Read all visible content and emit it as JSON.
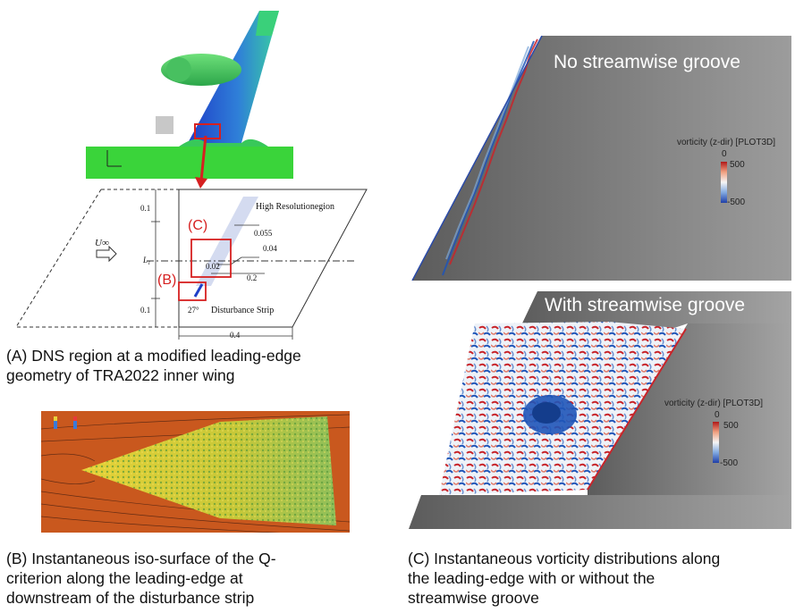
{
  "figure": {
    "panel_a": {
      "caption_line1": "(A) DNS region at a modified leading-edge",
      "caption_line2": "geometry of TRA2022 inner wing",
      "schematic": {
        "label_c": "(C)",
        "label_b": "(B)",
        "high_res": "High Resolutionegion",
        "disturbance": "Disturbance Strip",
        "u_inf": "U∞",
        "l1": "L₁",
        "d_01_top": "0.1",
        "d_01_bottom": "0.1",
        "d_0055": "0.055",
        "d_004": "0.04",
        "d_002": "0.02",
        "d_02": "0.2",
        "d_04": "0.4",
        "angle": "27°"
      }
    },
    "panel_b": {
      "caption_line1": "(B) Instantaneous iso-surface of the Q-",
      "caption_line2": "criterion along the leading-edge at",
      "caption_line3": "downstream of the disturbance strip"
    },
    "panel_c": {
      "top_title": "No streamwise groove",
      "bottom_title": "With streamwise groove",
      "legend_title": "vorticity (z-dir) [PLOT3D]",
      "legend_zero": "0",
      "legend_max": "500",
      "legend_min": "-500",
      "caption_line1": "(C) Instantaneous vorticity distributions along",
      "caption_line2": "the leading-edge with or without the",
      "caption_line3": "streamwise groove"
    },
    "colors": {
      "annotation_red": "#d62020",
      "wing_green": "#3ad43a",
      "vort_red": "#c8242a",
      "vort_blue": "#1f55b8",
      "panel_gray": "#6c6c6c",
      "q_orange": "#c9581e"
    }
  }
}
